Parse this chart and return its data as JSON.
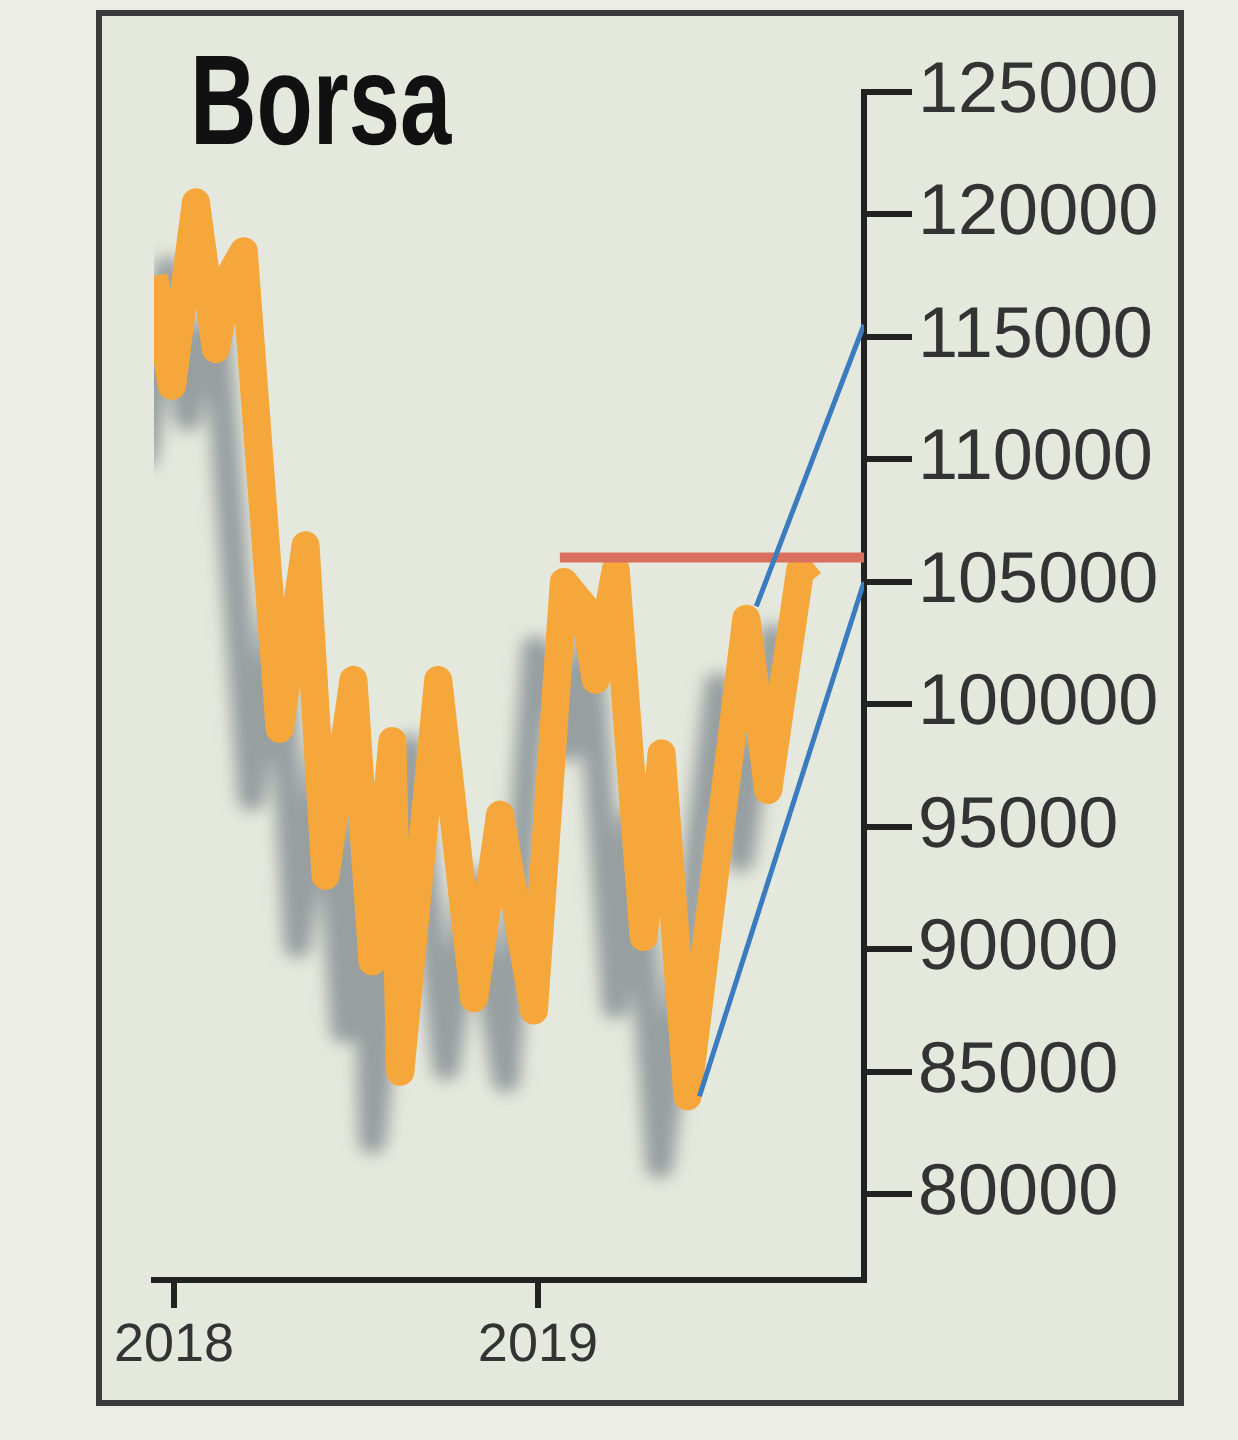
{
  "chart_data": {
    "type": "line",
    "title": "Borsa",
    "series": [
      {
        "color": "#f5a73b",
        "x": [
          "2017-12-12",
          "2017-12-30",
          "2018-01-23",
          "2018-02-12",
          "2018-02-26",
          "2018-03-12",
          "2018-04-17",
          "2018-05-13",
          "2018-06-02",
          "2018-06-30",
          "2018-07-19",
          "2018-08-08",
          "2018-08-16",
          "2018-09-23",
          "2018-10-29",
          "2018-11-24",
          "2018-12-28",
          "2019-01-27",
          "2019-02-16",
          "2019-02-28",
          "2019-03-20",
          "2019-04-17",
          "2019-05-05",
          "2019-05-31",
          "2019-07-29",
          "2019-08-20",
          "2019-09-21",
          "2019-10-01"
        ],
        "values": [
          117500,
          113000,
          120500,
          114500,
          117500,
          118500,
          99000,
          106500,
          93000,
          101000,
          89500,
          98500,
          85000,
          101000,
          88000,
          95500,
          87500,
          105000,
          104000,
          101000,
          105500,
          90500,
          98000,
          84000,
          103500,
          96500,
          105500,
          105000
        ]
      },
      {
        "color": "#d9705f",
        "x": [
          "2019-01-23",
          "2019-11-24"
        ],
        "values": [
          106000,
          106000
        ]
      },
      {
        "color": "#3b7cc0",
        "x": [
          "2019-06-12",
          "2019-11-24"
        ],
        "values": [
          84000,
          105000
        ]
      },
      {
        "color": "#3b7cc0",
        "x": [
          "2019-08-08",
          "2019-11-24"
        ],
        "values": [
          104000,
          115500
        ]
      }
    ],
    "xlim": [
      "2017-12-12",
      "2019-11-24"
    ],
    "xticks": [
      "2018",
      "2019"
    ],
    "ylim": [
      76500,
      125000
    ],
    "yticks": [
      80000,
      85000,
      90000,
      95000,
      100000,
      105000,
      110000,
      115000,
      120000,
      125000
    ],
    "legend": false,
    "marker": "none"
  }
}
